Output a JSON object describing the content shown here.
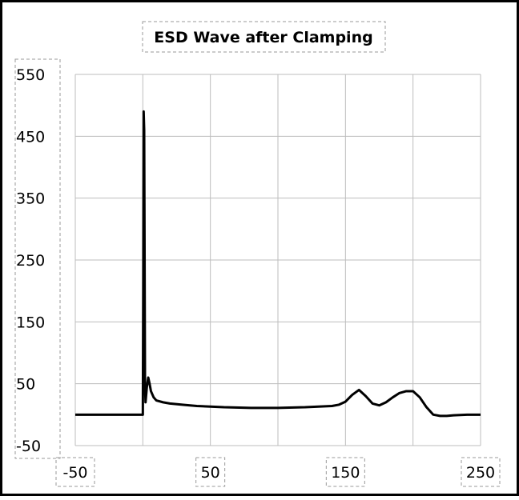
{
  "chart_data": {
    "type": "line",
    "title": "ESD Wave after Clamping",
    "xlabel": "",
    "ylabel": "",
    "xlim": [
      -50,
      250
    ],
    "ylim": [
      -50,
      550
    ],
    "x_ticks": [
      "-50",
      "50",
      "150",
      "250"
    ],
    "y_ticks": [
      "550",
      "450",
      "350",
      "250",
      "150",
      "50",
      "-50"
    ],
    "grid": true,
    "legend": "none",
    "series": [
      {
        "color": "#000000",
        "x": [
          -50,
          -1,
          0,
          0.3,
          0.6,
          1,
          1.6,
          2,
          3,
          4,
          5,
          6,
          8,
          10,
          15,
          20,
          30,
          40,
          50,
          60,
          80,
          100,
          120,
          130,
          140,
          145,
          150,
          155,
          160,
          165,
          170,
          175,
          180,
          185,
          190,
          195,
          200,
          205,
          210,
          215,
          220,
          225,
          230,
          240,
          250
        ],
        "y": [
          0,
          0,
          0,
          200,
          490,
          460,
          50,
          20,
          45,
          60,
          50,
          38,
          28,
          23,
          20,
          18,
          16,
          14,
          13,
          12,
          11,
          11,
          12,
          13,
          14,
          16,
          21,
          32,
          40,
          30,
          18,
          15,
          20,
          28,
          35,
          38,
          38,
          28,
          12,
          0,
          -2,
          -2,
          -1,
          0,
          0
        ]
      }
    ]
  }
}
